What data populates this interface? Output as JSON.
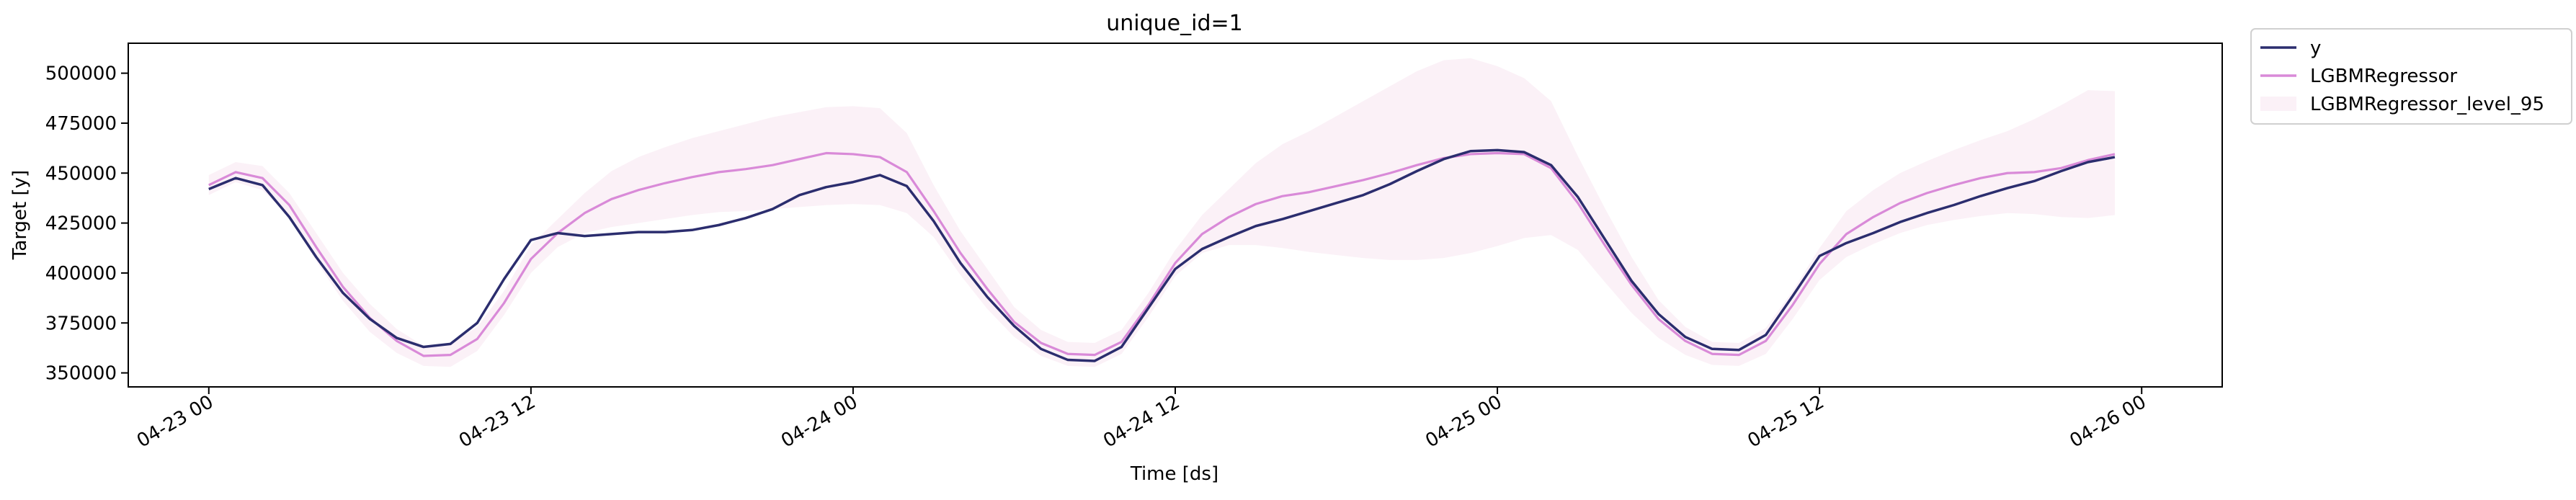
{
  "chart_data": {
    "type": "line",
    "title": "unique_id=1",
    "xlabel": "Time [ds]",
    "ylabel": "Target [y]",
    "x_start": "2023-04-23 00:00",
    "x_step_hours": 1,
    "xlim": [
      "2023-04-22 21:00",
      "2023-04-26 03:00"
    ],
    "ylim": [
      343000,
      515000
    ],
    "x_tick_labels": [
      {
        "at": "2023-04-23 00:00",
        "label": "04-23 00"
      },
      {
        "at": "2023-04-23 12:00",
        "label": "04-23 12"
      },
      {
        "at": "2023-04-24 00:00",
        "label": "04-24 00"
      },
      {
        "at": "2023-04-24 12:00",
        "label": "04-24 12"
      },
      {
        "at": "2023-04-25 00:00",
        "label": "04-25 00"
      },
      {
        "at": "2023-04-25 12:00",
        "label": "04-25 12"
      },
      {
        "at": "2023-04-26 00:00",
        "label": "04-26 00"
      }
    ],
    "y_ticks": [
      350000,
      375000,
      400000,
      425000,
      450000,
      475000,
      500000
    ],
    "y_tick_labels": [
      "350000",
      "375000",
      "400000",
      "425000",
      "450000",
      "475000",
      "500000"
    ],
    "legend_position": "outside-top-right",
    "series": [
      {
        "name": "y",
        "color": "#2b2d6e",
        "values": [
          442000,
          447500,
          444000,
          428000,
          408000,
          390000,
          377000,
          367500,
          363000,
          364500,
          375000,
          397000,
          416500,
          420000,
          418500,
          419500,
          420500,
          420500,
          421500,
          424000,
          427500,
          432000,
          439000,
          443000,
          445500,
          449000,
          443500,
          426000,
          405000,
          388000,
          373500,
          362000,
          356500,
          356000,
          363000,
          382500,
          402000,
          412000,
          418000,
          423500,
          427000,
          431000,
          435000,
          439000,
          444500,
          451000,
          457000,
          461000,
          461500,
          460500,
          454000,
          438000,
          417000,
          396000,
          379500,
          368000,
          362000,
          361500,
          369000,
          388500,
          408500,
          415000,
          420000,
          425500,
          430000,
          434000,
          438500,
          442500,
          446000,
          451000,
          455500,
          458000
        ]
      },
      {
        "name": "LGBMRegressor",
        "color": "#d98ad8",
        "values": [
          444000,
          450500,
          447500,
          434000,
          413000,
          393000,
          377500,
          366000,
          358500,
          359000,
          367000,
          385000,
          407000,
          420000,
          430000,
          437000,
          441500,
          445000,
          448000,
          450500,
          452000,
          454000,
          457000,
          460000,
          459500,
          458000,
          450500,
          431000,
          410000,
          392000,
          375500,
          365000,
          359500,
          359000,
          365500,
          384000,
          405000,
          419500,
          428000,
          434500,
          438500,
          440500,
          443500,
          446500,
          450000,
          454000,
          457500,
          459500,
          460000,
          459500,
          452500,
          435000,
          414000,
          394000,
          377000,
          366000,
          359500,
          359000,
          366000,
          384000,
          404500,
          419500,
          428000,
          435000,
          440000,
          444000,
          447500,
          450000,
          450500,
          452500,
          456500,
          459500
        ]
      }
    ],
    "band": {
      "name": "LGBMRegressor_level_95",
      "color": "#fbf1f7",
      "lower": [
        439000,
        445500,
        441500,
        428000,
        406000,
        386000,
        370500,
        360000,
        353500,
        353000,
        361000,
        379000,
        400000,
        413000,
        420000,
        423000,
        425000,
        427000,
        429000,
        430500,
        431000,
        432000,
        433000,
        434000,
        434500,
        434000,
        430000,
        418000,
        399000,
        382000,
        368000,
        358500,
        353500,
        353000,
        359500,
        378000,
        398500,
        410000,
        414000,
        414000,
        412500,
        410500,
        409000,
        407500,
        406500,
        406500,
        407500,
        410000,
        413500,
        417500,
        419000,
        411500,
        395500,
        380000,
        367500,
        359000,
        354000,
        353500,
        359500,
        377000,
        396500,
        408000,
        414500,
        420000,
        424000,
        426500,
        428500,
        430000,
        429500,
        428000,
        427500,
        429000
      ],
      "upper": [
        449000,
        455500,
        453500,
        440000,
        420000,
        400000,
        384500,
        372000,
        363500,
        365000,
        373000,
        391000,
        414000,
        427000,
        440000,
        451000,
        458000,
        463000,
        467500,
        471000,
        474500,
        478000,
        480500,
        483000,
        483500,
        482500,
        470000,
        444000,
        421000,
        402000,
        383000,
        371500,
        365500,
        365000,
        371500,
        390000,
        411500,
        429000,
        442000,
        455000,
        464500,
        471000,
        478500,
        486000,
        493500,
        501000,
        506500,
        507500,
        503500,
        497500,
        486000,
        458500,
        432500,
        408000,
        386500,
        373000,
        365500,
        365000,
        372500,
        391000,
        412500,
        431000,
        441500,
        450000,
        456000,
        461500,
        466500,
        471000,
        477000,
        484000,
        491500,
        491000
      ]
    }
  },
  "legend": [
    {
      "label": "y",
      "kind": "line",
      "color": "#2b2d6e"
    },
    {
      "label": "LGBMRegressor",
      "kind": "line",
      "color": "#d98ad8"
    },
    {
      "label": "LGBMRegressor_level_95",
      "kind": "patch",
      "color": "#fbf1f7"
    }
  ]
}
